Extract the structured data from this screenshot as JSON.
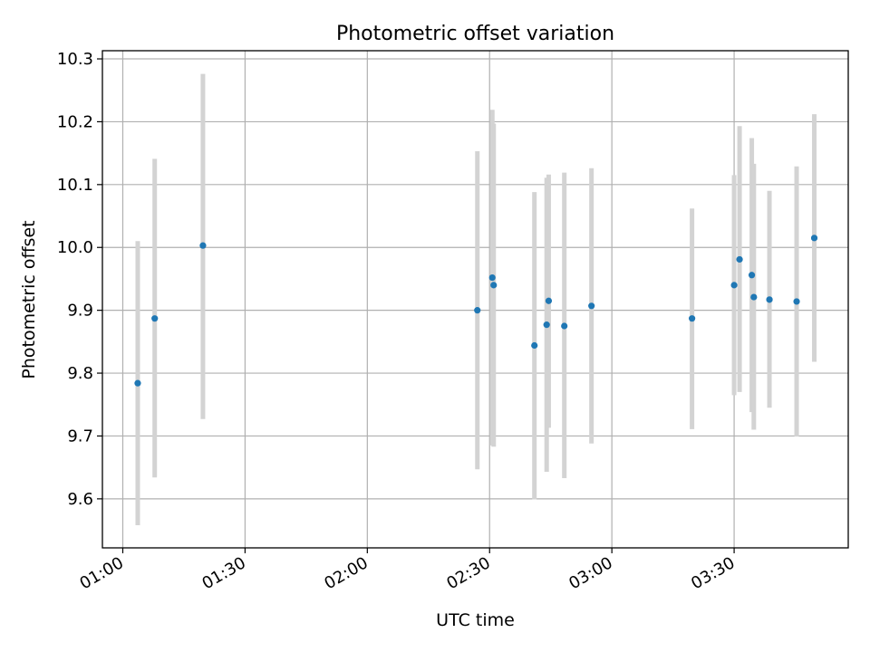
{
  "chart_data": {
    "type": "scatter",
    "title": "Photometric offset variation",
    "xlabel": "UTC time",
    "ylabel": "Photometric offset",
    "x_unit": "HH:MM UTC",
    "xlim": [
      "00:55",
      "03:58"
    ],
    "ylim": [
      9.522,
      10.313
    ],
    "x_ticks": [
      "01:00",
      "01:30",
      "02:00",
      "02:30",
      "03:00",
      "03:30"
    ],
    "y_ticks": [
      "9.6",
      "9.7",
      "9.8",
      "9.9",
      "10.0",
      "10.1",
      "10.2",
      "10.3"
    ],
    "grid": true,
    "errorbar_color": "#d3d3d3",
    "point_color": "#1f77b4",
    "points": [
      {
        "x": "01:03:40",
        "y": 9.784,
        "ylow": 9.558,
        "yhigh": 10.01
      },
      {
        "x": "01:07:50",
        "y": 9.887,
        "ylow": 9.634,
        "yhigh": 10.141
      },
      {
        "x": "01:19:40",
        "y": 10.003,
        "ylow": 9.727,
        "yhigh": 10.276
      },
      {
        "x": "02:27:00",
        "y": 9.9,
        "ylow": 9.647,
        "yhigh": 10.153
      },
      {
        "x": "02:30:40",
        "y": 9.952,
        "ylow": 9.685,
        "yhigh": 10.219
      },
      {
        "x": "02:31:00",
        "y": 9.94,
        "ylow": 9.683,
        "yhigh": 10.197
      },
      {
        "x": "02:41:00",
        "y": 9.844,
        "ylow": 9.599,
        "yhigh": 10.088
      },
      {
        "x": "02:44:00",
        "y": 9.877,
        "ylow": 9.643,
        "yhigh": 10.111
      },
      {
        "x": "02:44:30",
        "y": 9.915,
        "ylow": 9.713,
        "yhigh": 10.116
      },
      {
        "x": "02:48:20",
        "y": 9.875,
        "ylow": 9.633,
        "yhigh": 10.119
      },
      {
        "x": "02:55:00",
        "y": 9.907,
        "ylow": 9.688,
        "yhigh": 10.126
      },
      {
        "x": "03:19:40",
        "y": 9.887,
        "ylow": 9.711,
        "yhigh": 10.062
      },
      {
        "x": "03:30:00",
        "y": 9.94,
        "ylow": 9.765,
        "yhigh": 10.115
      },
      {
        "x": "03:31:20",
        "y": 9.981,
        "ylow": 9.77,
        "yhigh": 10.193
      },
      {
        "x": "03:34:20",
        "y": 9.956,
        "ylow": 9.738,
        "yhigh": 10.174
      },
      {
        "x": "03:34:50",
        "y": 9.921,
        "ylow": 9.71,
        "yhigh": 10.133
      },
      {
        "x": "03:38:40",
        "y": 9.917,
        "ylow": 9.745,
        "yhigh": 10.09
      },
      {
        "x": "03:45:20",
        "y": 9.914,
        "ylow": 9.699,
        "yhigh": 10.129
      },
      {
        "x": "03:49:40",
        "y": 10.015,
        "ylow": 9.818,
        "yhigh": 10.212
      }
    ]
  }
}
